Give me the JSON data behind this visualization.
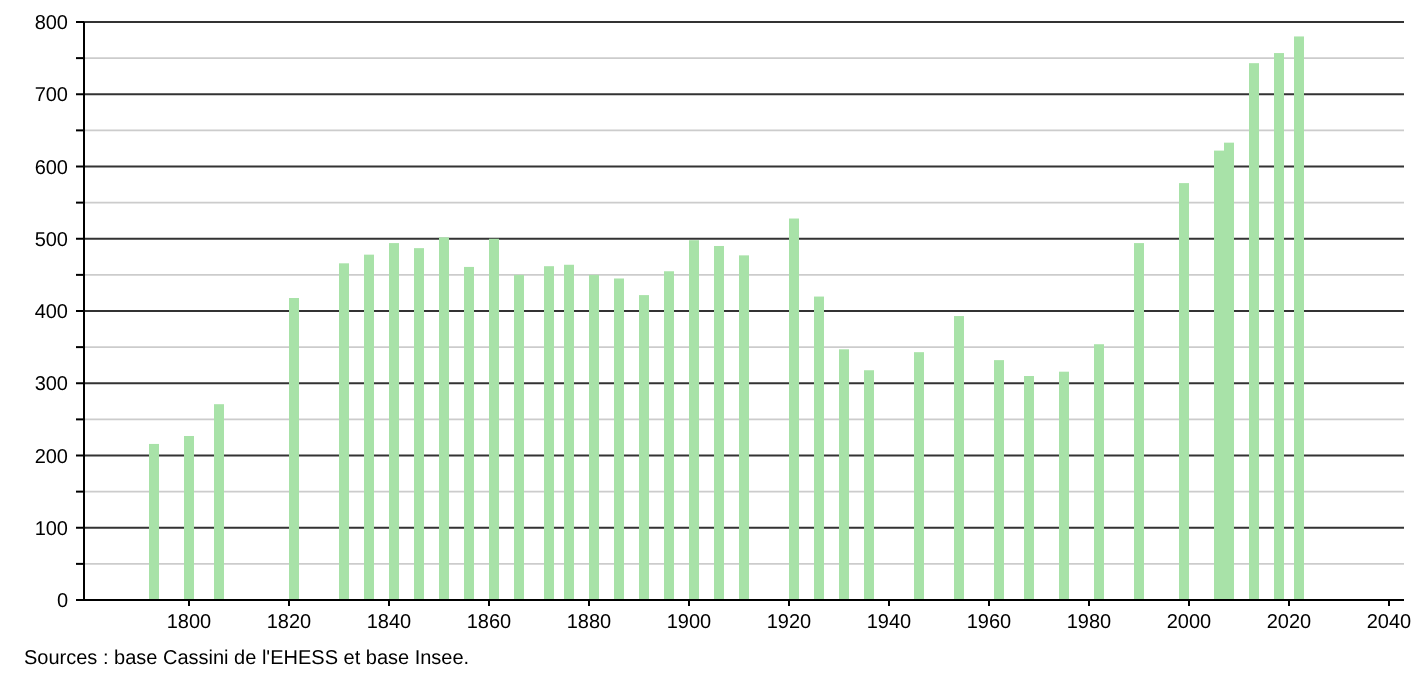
{
  "chart_data": {
    "type": "bar",
    "x": [
      1793,
      1800,
      1806,
      1821,
      1831,
      1836,
      1841,
      1846,
      1851,
      1856,
      1861,
      1866,
      1872,
      1876,
      1881,
      1886,
      1891,
      1896,
      1901,
      1906,
      1911,
      1921,
      1926,
      1931,
      1936,
      1946,
      1954,
      1962,
      1968,
      1975,
      1982,
      1990,
      1999,
      2006,
      2008,
      2013,
      2018,
      2022
    ],
    "values": [
      216,
      227,
      271,
      418,
      466,
      478,
      494,
      487,
      502,
      461,
      500,
      450,
      462,
      464,
      450,
      445,
      422,
      455,
      498,
      490,
      477,
      528,
      420,
      347,
      318,
      343,
      393,
      332,
      310,
      316,
      354,
      494,
      577,
      622,
      633,
      743,
      757,
      780
    ],
    "color": "#a8e2a8",
    "xlim": [
      1779,
      2043
    ],
    "xticks": [
      1800,
      1820,
      1840,
      1860,
      1880,
      1900,
      1920,
      1940,
      1960,
      1980,
      2000,
      2020,
      2040
    ],
    "ylim": [
      0,
      800
    ],
    "yticks": [
      0,
      {
        "value": 50,
        "label": null
      },
      100,
      {
        "value": 150,
        "label": null
      },
      200,
      {
        "value": 250,
        "label": null
      },
      300,
      {
        "value": 350,
        "label": null
      },
      400,
      {
        "value": 450,
        "label": null
      },
      500,
      {
        "value": 550,
        "label": null
      },
      600,
      {
        "value": 650,
        "label": null
      },
      700,
      {
        "value": 750,
        "label": null
      },
      800
    ],
    "grid": "y",
    "annotations": [
      "Sources : base Cassini de l'EHESS et base Insee."
    ]
  }
}
